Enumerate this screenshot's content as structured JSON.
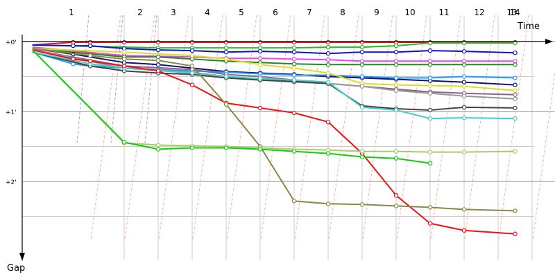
{
  "chart_data": {
    "type": "line",
    "xlabel": "Time",
    "ylabel": "Gap",
    "x_ticks": [
      "1",
      "2",
      "3",
      "4",
      "5",
      "6",
      "7",
      "8",
      "9",
      "10",
      "11",
      "12",
      "13",
      "14"
    ],
    "y_ticks": [
      "+0'",
      "+1'",
      "+2'"
    ],
    "ylim": [
      0,
      3.1
    ],
    "y_inverted": true,
    "grid": true,
    "series": [
      {
        "color": "#ee1111",
        "points": [
          [
            0.3,
            0.05
          ],
          [
            1.5,
            0.01
          ],
          [
            2,
            0.01
          ],
          [
            3,
            0.01
          ],
          [
            4,
            0.01
          ],
          [
            5,
            0.01
          ],
          [
            6,
            0.01
          ],
          [
            7,
            0.01
          ],
          [
            8,
            0.01
          ],
          [
            9,
            0.01
          ],
          [
            10,
            0.01
          ],
          [
            11,
            0.01
          ],
          [
            12,
            0.01
          ],
          [
            13,
            0.01
          ],
          [
            14.5,
            0.01
          ]
        ]
      },
      {
        "color": "#22bb22",
        "points": [
          [
            0.3,
            0.05
          ],
          [
            4,
            0.09
          ],
          [
            5,
            0.09
          ],
          [
            6,
            0.09
          ],
          [
            7,
            0.09
          ],
          [
            8,
            0.09
          ],
          [
            9,
            0.08
          ],
          [
            10,
            0.08
          ],
          [
            11,
            0.06
          ],
          [
            12,
            0.02
          ],
          [
            13,
            0.02
          ],
          [
            14.5,
            0.02
          ]
        ]
      },
      {
        "color": "#1111cc",
        "points": [
          [
            0.3,
            0.05
          ],
          [
            1.5,
            0.06
          ],
          [
            2,
            0.06
          ],
          [
            3,
            0.1
          ],
          [
            4,
            0.12
          ],
          [
            5,
            0.13
          ],
          [
            6,
            0.15
          ],
          [
            7,
            0.14
          ],
          [
            8,
            0.15
          ],
          [
            9,
            0.17
          ],
          [
            10,
            0.15
          ],
          [
            11,
            0.15
          ],
          [
            12,
            0.13
          ],
          [
            13,
            0.14
          ],
          [
            14.5,
            0.16
          ]
        ]
      },
      {
        "color": "#ee44ee",
        "points": [
          [
            0.3,
            0.08
          ],
          [
            3,
            0.2
          ],
          [
            5,
            0.22
          ],
          [
            6,
            0.24
          ],
          [
            7,
            0.24
          ],
          [
            8,
            0.25
          ],
          [
            9,
            0.26
          ],
          [
            10,
            0.28
          ],
          [
            11,
            0.28
          ],
          [
            12,
            0.28
          ],
          [
            13,
            0.28
          ],
          [
            14.5,
            0.28
          ]
        ]
      },
      {
        "color": "#228822",
        "points": [
          [
            0.3,
            0.1
          ],
          [
            3,
            0.22
          ],
          [
            4,
            0.22
          ],
          [
            5,
            0.25
          ],
          [
            6,
            0.28
          ],
          [
            7,
            0.3
          ],
          [
            8,
            0.32
          ],
          [
            9,
            0.33
          ],
          [
            10,
            0.33
          ],
          [
            11,
            0.33
          ],
          [
            12,
            0.33
          ],
          [
            13,
            0.33
          ],
          [
            14.5,
            0.33
          ]
        ]
      },
      {
        "color": "#111177",
        "points": [
          [
            0.3,
            0.1
          ],
          [
            1.5,
            0.18
          ],
          [
            3,
            0.3
          ],
          [
            4,
            0.33
          ],
          [
            5,
            0.38
          ],
          [
            6,
            0.43
          ],
          [
            7,
            0.45
          ],
          [
            8,
            0.47
          ],
          [
            9,
            0.5
          ],
          [
            10,
            0.52
          ],
          [
            11,
            0.54
          ],
          [
            12,
            0.56
          ],
          [
            13,
            0.58
          ],
          [
            14.5,
            0.62
          ]
        ]
      },
      {
        "color": "#2299ee",
        "points": [
          [
            0.3,
            0.15
          ],
          [
            1.5,
            0.32
          ],
          [
            2,
            0.35
          ],
          [
            3,
            0.38
          ],
          [
            4,
            0.4
          ],
          [
            5,
            0.42
          ],
          [
            6,
            0.44
          ],
          [
            7,
            0.46
          ],
          [
            8,
            0.48
          ],
          [
            9,
            0.48
          ],
          [
            10,
            0.5
          ],
          [
            11,
            0.52
          ],
          [
            12,
            0.52
          ],
          [
            13,
            0.5
          ],
          [
            14.5,
            0.52
          ]
        ]
      },
      {
        "color": "#dddd22",
        "points": [
          [
            0.3,
            0.1
          ],
          [
            3,
            0.15
          ],
          [
            5,
            0.2
          ],
          [
            6,
            0.25
          ],
          [
            7,
            0.33
          ],
          [
            8,
            0.38
          ],
          [
            9,
            0.45
          ],
          [
            10,
            0.6
          ],
          [
            11,
            0.62
          ],
          [
            12,
            0.63
          ],
          [
            13,
            0.64
          ],
          [
            14.5,
            0.7
          ]
        ]
      },
      {
        "color": "#886688",
        "points": [
          [
            0.3,
            0.12
          ],
          [
            3,
            0.35
          ],
          [
            5,
            0.4
          ],
          [
            6,
            0.47
          ],
          [
            7,
            0.5
          ],
          [
            8,
            0.55
          ],
          [
            9,
            0.6
          ],
          [
            10,
            0.64
          ],
          [
            11,
            0.68
          ],
          [
            12,
            0.72
          ],
          [
            13,
            0.74
          ],
          [
            14.5,
            0.76
          ]
        ]
      },
      {
        "color": "#999999",
        "points": [
          [
            0.3,
            0.12
          ],
          [
            3,
            0.38
          ],
          [
            5,
            0.44
          ],
          [
            6,
            0.5
          ],
          [
            7,
            0.55
          ],
          [
            8,
            0.58
          ],
          [
            9,
            0.6
          ],
          [
            10,
            0.64
          ],
          [
            11,
            0.7
          ],
          [
            12,
            0.74
          ],
          [
            13,
            0.78
          ],
          [
            14.5,
            0.82
          ]
        ]
      },
      {
        "color": "#444444",
        "points": [
          [
            0.3,
            0.15
          ],
          [
            2,
            0.35
          ],
          [
            3,
            0.42
          ],
          [
            4,
            0.45
          ],
          [
            5,
            0.47
          ],
          [
            6,
            0.52
          ],
          [
            7,
            0.55
          ],
          [
            8,
            0.57
          ],
          [
            9,
            0.6
          ],
          [
            10,
            0.92
          ],
          [
            11,
            0.96
          ],
          [
            12,
            0.98
          ],
          [
            13,
            0.94
          ],
          [
            14.5,
            0.95
          ]
        ]
      },
      {
        "color": "#44cccc",
        "points": [
          [
            0.3,
            0.15
          ],
          [
            2,
            0.32
          ],
          [
            3,
            0.38
          ],
          [
            5,
            0.45
          ],
          [
            6,
            0.5
          ],
          [
            7,
            0.53
          ],
          [
            8,
            0.55
          ],
          [
            9,
            0.58
          ],
          [
            10,
            0.94
          ],
          [
            11,
            0.98
          ],
          [
            12,
            1.1
          ],
          [
            13,
            1.09
          ],
          [
            14.5,
            1.1
          ]
        ]
      },
      {
        "color": "#ee1111",
        "points": [
          [
            0.3,
            0.12
          ],
          [
            1.5,
            0.25
          ],
          [
            2,
            0.28
          ],
          [
            3,
            0.35
          ],
          [
            4,
            0.42
          ],
          [
            5,
            0.62
          ],
          [
            6,
            0.88
          ],
          [
            7,
            0.95
          ],
          [
            8,
            1.02
          ],
          [
            9,
            1.15
          ],
          [
            10,
            1.6
          ],
          [
            11,
            2.2
          ],
          [
            12,
            2.6
          ],
          [
            13,
            2.7
          ],
          [
            14.5,
            2.75
          ]
        ]
      },
      {
        "color": "#888844",
        "points": [
          [
            0.3,
            0.1
          ],
          [
            2,
            0.2
          ],
          [
            3,
            0.25
          ],
          [
            4,
            0.27
          ],
          [
            5,
            0.35
          ],
          [
            6,
            0.9
          ],
          [
            7,
            1.5
          ],
          [
            8,
            2.28
          ],
          [
            9,
            2.32
          ],
          [
            10,
            2.33
          ],
          [
            11,
            2.35
          ],
          [
            12,
            2.37
          ],
          [
            13,
            2.4
          ],
          [
            14.5,
            2.42
          ]
        ]
      },
      {
        "color": "#aacc66",
        "points": [
          [
            0.3,
            0.12
          ],
          [
            3,
            1.45
          ],
          [
            4,
            1.48
          ],
          [
            5,
            1.49
          ],
          [
            6,
            1.5
          ],
          [
            7,
            1.52
          ],
          [
            8,
            1.54
          ],
          [
            9,
            1.55
          ],
          [
            10,
            1.57
          ],
          [
            11,
            1.57
          ],
          [
            12,
            1.58
          ],
          [
            13,
            1.58
          ],
          [
            14.5,
            1.57
          ]
        ]
      },
      {
        "color": "#11cc11",
        "points": [
          [
            0.3,
            0.12
          ],
          [
            3,
            1.44
          ],
          [
            4,
            1.54
          ],
          [
            5,
            1.52
          ],
          [
            6,
            1.52
          ],
          [
            7,
            1.54
          ],
          [
            8,
            1.57
          ],
          [
            9,
            1.6
          ],
          [
            10,
            1.65
          ],
          [
            11,
            1.67
          ],
          [
            12,
            1.74
          ]
        ]
      }
    ],
    "pitstop_lines_red": [
      [
        3,
        1
      ],
      [
        4,
        2
      ],
      [
        5,
        3
      ],
      [
        6,
        4
      ],
      [
        7,
        5
      ],
      [
        8,
        6
      ],
      [
        9,
        7
      ],
      [
        10,
        8
      ],
      [
        11,
        9
      ],
      [
        12,
        10
      ],
      [
        13,
        11
      ],
      [
        14,
        12
      ],
      [
        15,
        13
      ],
      [
        16,
        14
      ]
    ],
    "pitstop_lines_blue": [
      [
        2,
        1
      ],
      [
        3,
        2
      ],
      [
        4,
        3
      ]
    ]
  }
}
